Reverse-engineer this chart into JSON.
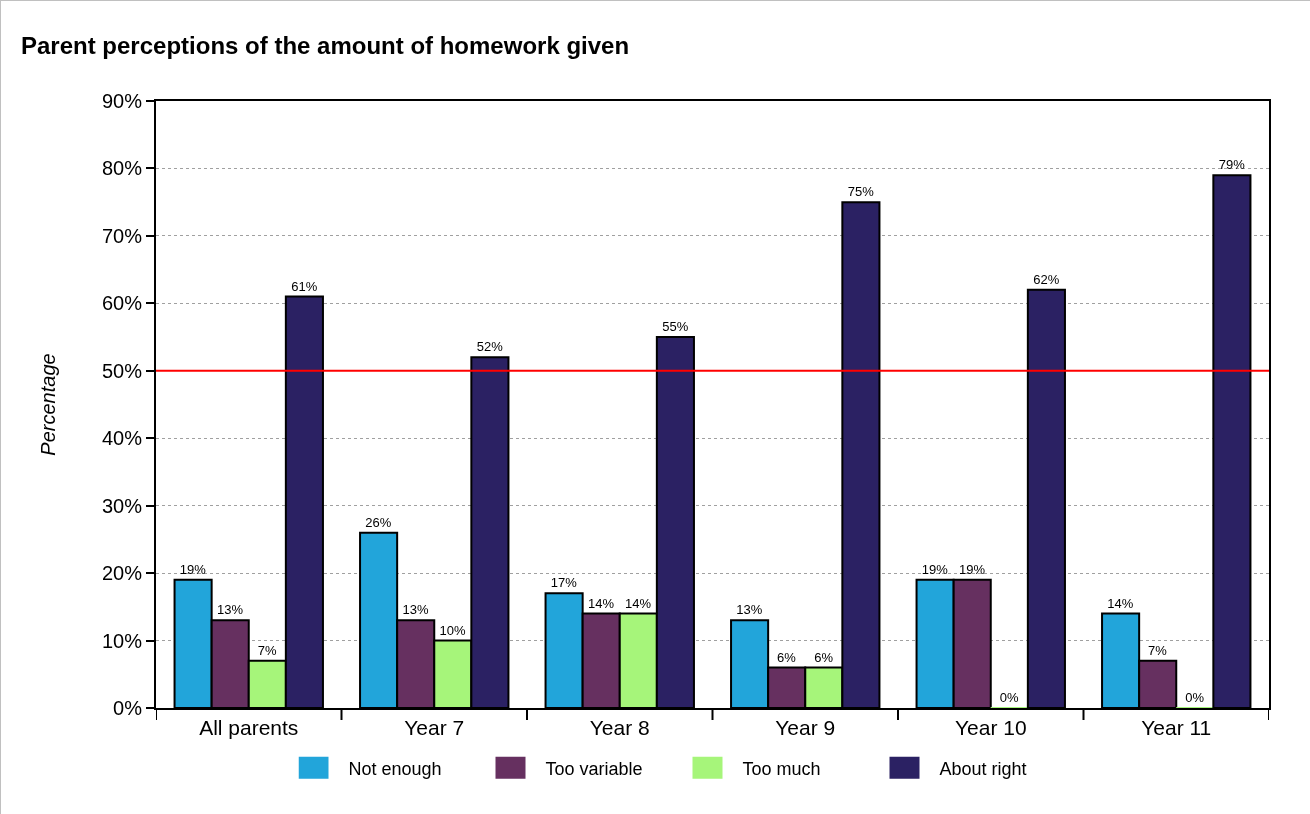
{
  "chart_data": {
    "type": "bar",
    "title": "Parent perceptions of the amount of homework given",
    "ylabel": "Percentage",
    "categories": [
      "All parents",
      "Year 7",
      "Year 8",
      "Year 9",
      "Year 10",
      "Year 11"
    ],
    "series": [
      {
        "name": "Not enough",
        "color": "#22a5da",
        "values": [
          19,
          26,
          17,
          13,
          19,
          14
        ],
        "value_labels": [
          "19%",
          "26%",
          "17%",
          "13%",
          "19%",
          "14%"
        ]
      },
      {
        "name": "Too variable",
        "color": "#663060",
        "values": [
          13,
          13,
          14,
          6,
          19,
          7
        ],
        "value_labels": [
          "13%",
          "13%",
          "14%",
          "6%",
          "19%",
          "7%"
        ]
      },
      {
        "name": "Too much",
        "color": "#a6f57a",
        "values": [
          7,
          10,
          14,
          6,
          0,
          0
        ],
        "value_labels": [
          "7%",
          "10%",
          "14%",
          "6%",
          "0%",
          "0%"
        ]
      },
      {
        "name": "About right",
        "color": "#2b2163",
        "values": [
          61,
          52,
          55,
          75,
          62,
          79
        ],
        "value_labels": [
          "61%",
          "52%",
          "55%",
          "75%",
          "62%",
          "79%"
        ]
      }
    ],
    "ylim": [
      0,
      90
    ],
    "yticks": [
      {
        "value": 0,
        "label": "0%"
      },
      {
        "value": 10,
        "label": "10%"
      },
      {
        "value": 20,
        "label": "20%"
      },
      {
        "value": 30,
        "label": "30%"
      },
      {
        "value": 40,
        "label": "40%"
      },
      {
        "value": 50,
        "label": "50%"
      },
      {
        "value": 60,
        "label": "60%"
      },
      {
        "value": 70,
        "label": "70%"
      },
      {
        "value": 80,
        "label": "80%"
      },
      {
        "value": 90,
        "label": "90%"
      }
    ],
    "ref_lines": [
      {
        "axis": "y",
        "value": 50,
        "color": "#ff0000"
      }
    ],
    "grid": "y",
    "legend": "bottom"
  }
}
